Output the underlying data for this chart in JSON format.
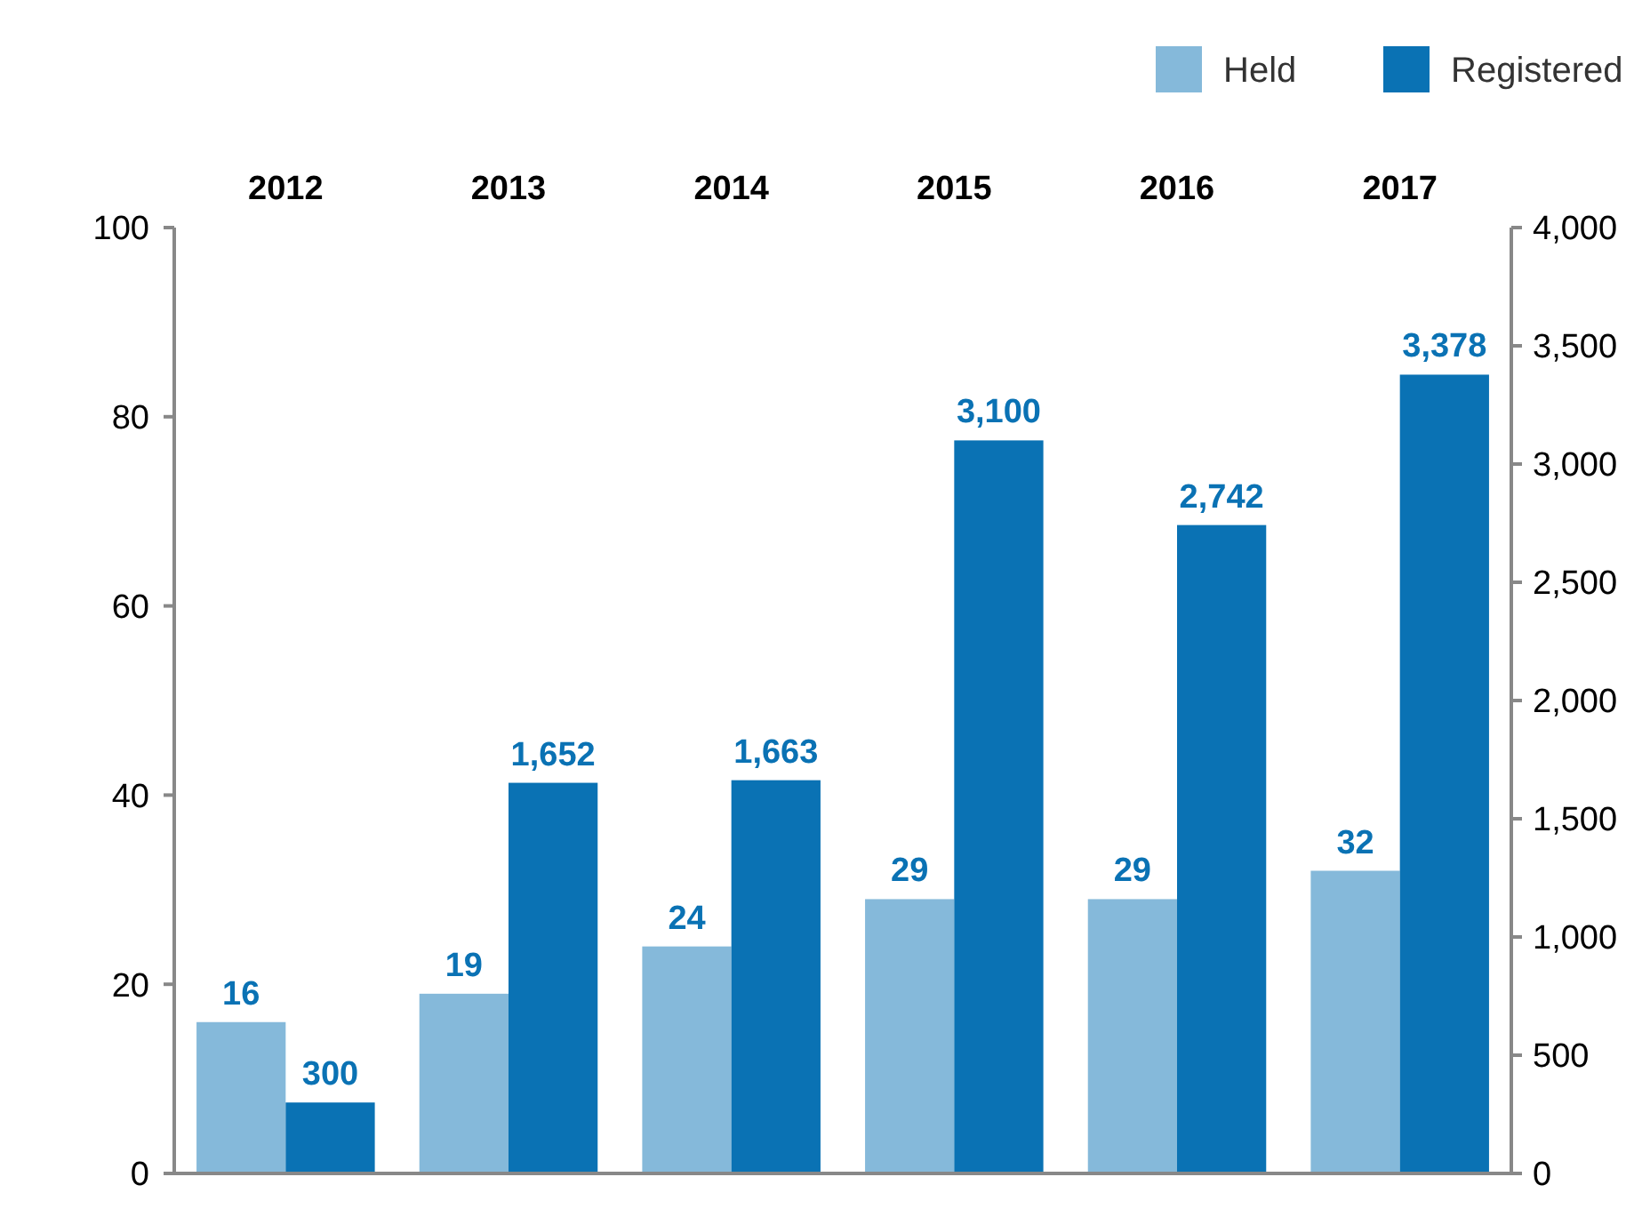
{
  "chart_data": {
    "type": "bar",
    "categories": [
      "2012",
      "2013",
      "2014",
      "2015",
      "2016",
      "2017"
    ],
    "series": [
      {
        "name": "Held",
        "color": "#85b9da",
        "values": [
          16,
          19,
          24,
          29,
          29,
          32
        ],
        "value_labels": [
          "16",
          "19",
          "24",
          "29",
          "29",
          "32"
        ]
      },
      {
        "name": "Registered",
        "color": "#0a72b4",
        "axis": "y2",
        "values": [
          300,
          1652,
          1663,
          3100,
          2742,
          3378
        ],
        "value_labels": [
          "300",
          "1,652",
          "1,663",
          "3,100",
          "2,742",
          "3,378"
        ]
      }
    ],
    "ylim": [
      0,
      100
    ],
    "yticks": [
      0,
      20,
      40,
      60,
      80,
      100
    ],
    "y2lim": [
      0,
      4000
    ],
    "y2ticks": [
      0,
      {
        "value": 500,
        "label": "500"
      },
      {
        "value": 1000,
        "label": "1,000"
      },
      {
        "value": 1500,
        "label": "1,500"
      },
      {
        "value": 2000,
        "label": "2,000"
      },
      {
        "value": 2500,
        "label": "2,500"
      },
      {
        "value": 3000,
        "label": "3,000"
      },
      {
        "value": 3500,
        "label": "3,500"
      },
      {
        "value": 4000,
        "label": "4,000"
      }
    ],
    "legend": "top right",
    "grid": false
  }
}
